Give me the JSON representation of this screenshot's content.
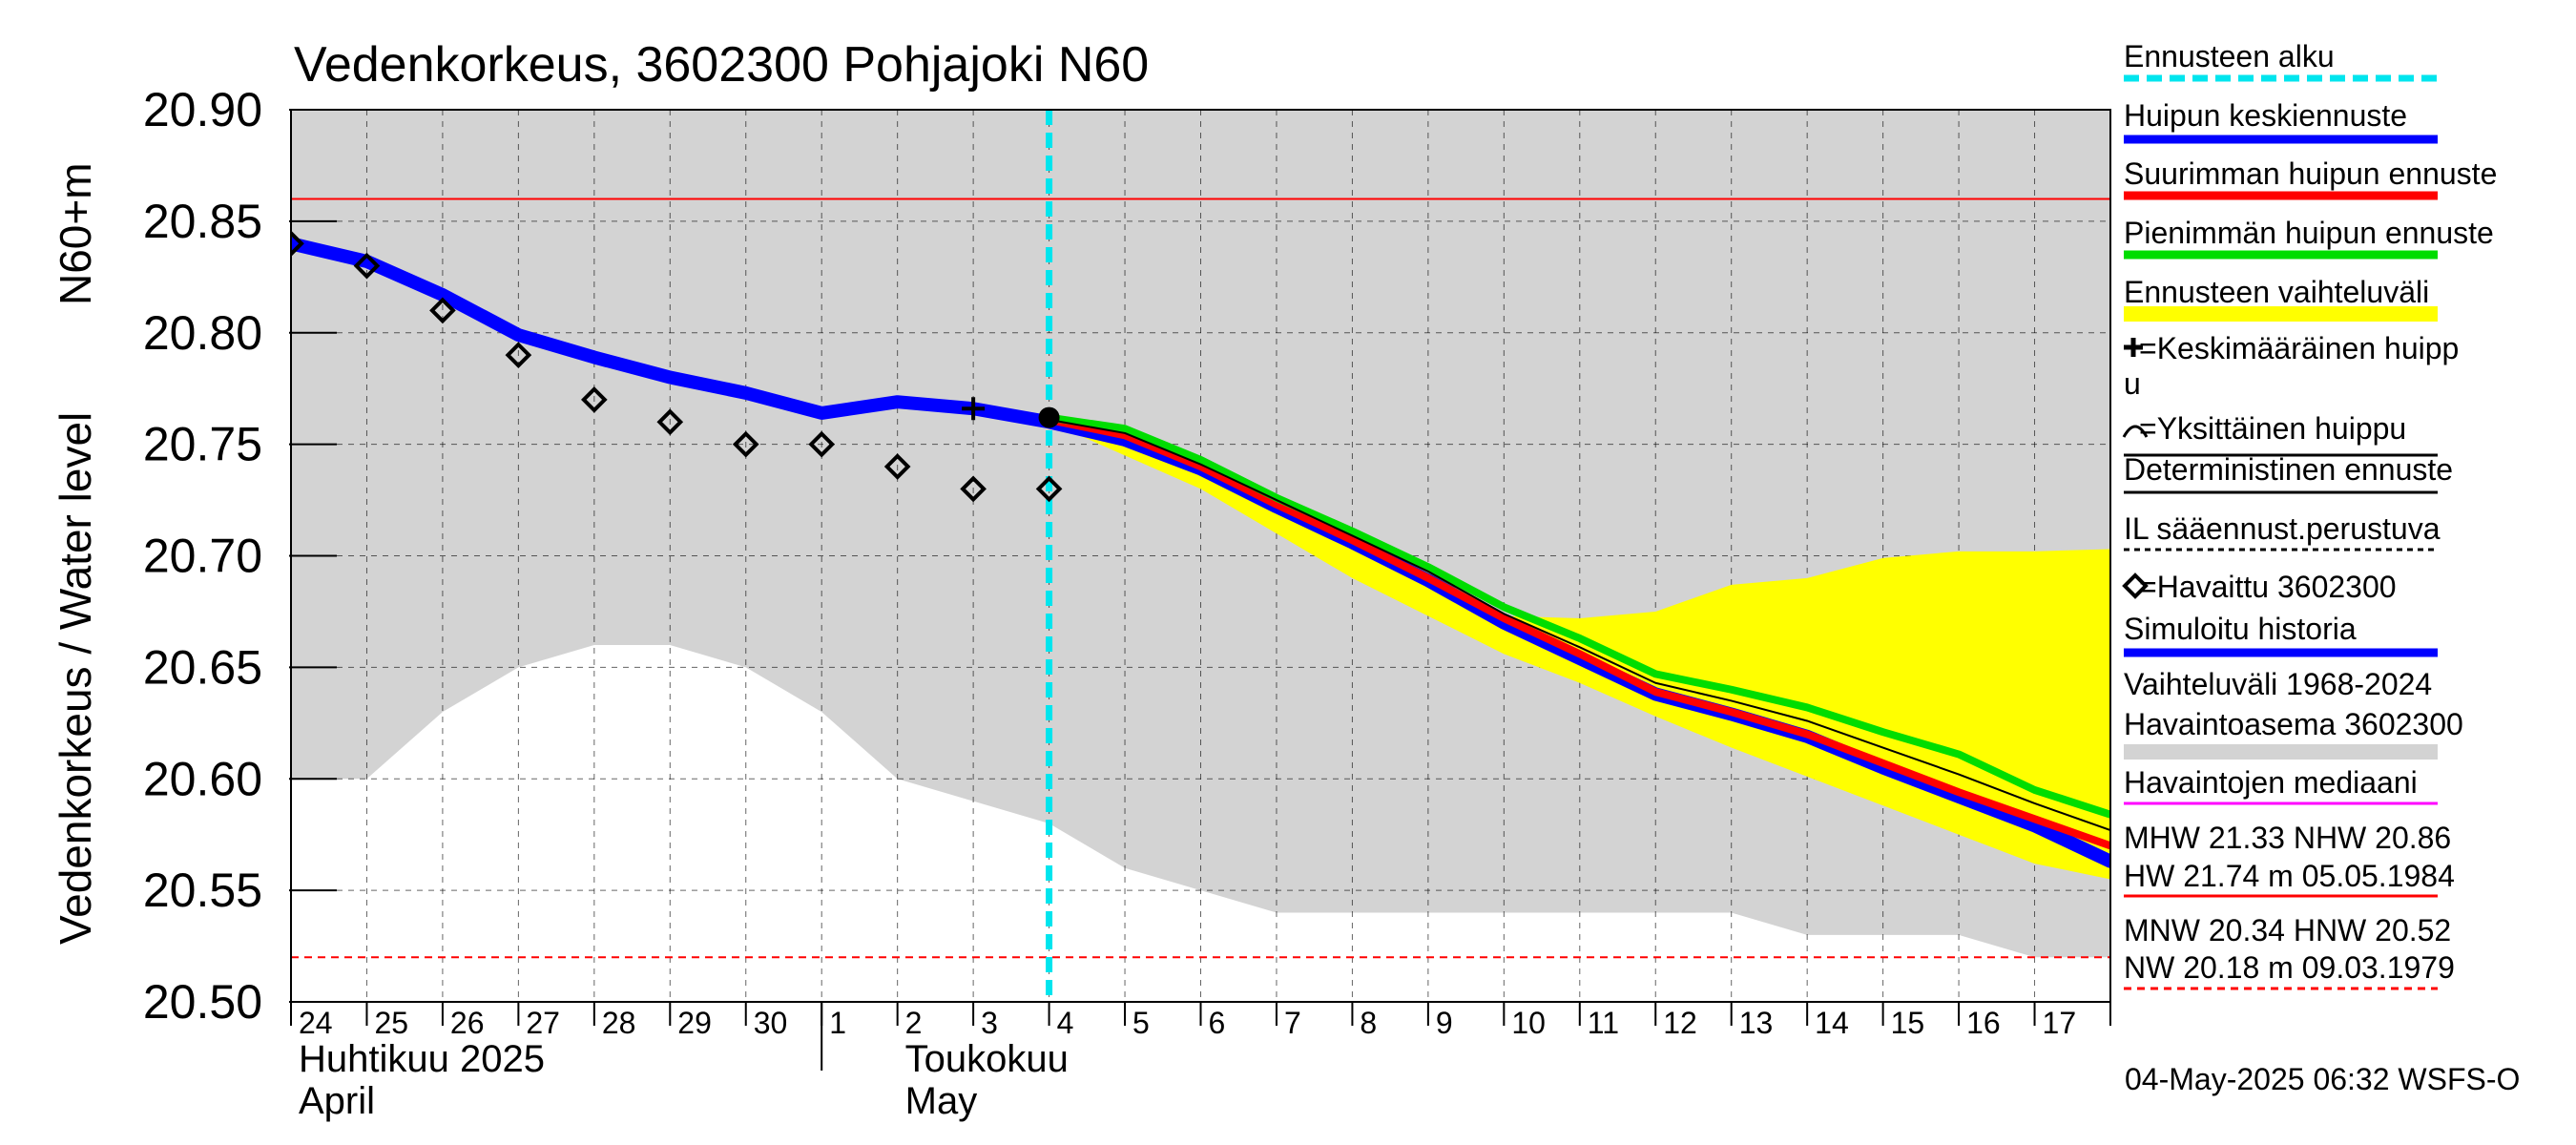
{
  "chart_data": {
    "type": "line",
    "title": "Vedenkorkeus, 3602300 Pohjajoki N60",
    "ylabel": "Vedenkorkeus / Water level",
    "ylabel_unit": "N60+m",
    "ylim": [
      20.5,
      20.9
    ],
    "yticks": [
      "20.90",
      "20.85",
      "20.80",
      "20.75",
      "20.70",
      "20.65",
      "20.60",
      "20.55",
      "20.50"
    ],
    "ytick_values": [
      20.9,
      20.85,
      20.8,
      20.75,
      20.7,
      20.65,
      20.6,
      20.55,
      20.5
    ],
    "xlim": [
      0,
      24
    ],
    "days": [
      "24",
      "25",
      "26",
      "27",
      "28",
      "29",
      "30",
      "1",
      "2",
      "3",
      "4",
      "5",
      "6",
      "7",
      "8",
      "9",
      "10",
      "11",
      "12",
      "13",
      "14",
      "15",
      "16",
      "17"
    ],
    "months": [
      {
        "line1": "Huhtikuu  2025",
        "line2": "April",
        "at": 0
      },
      {
        "line1": "Toukokuu",
        "line2": "May",
        "at": 8
      }
    ],
    "month_divider_at": 7,
    "forecast_start": 10,
    "reference_lines": {
      "nhw": 20.86,
      "hnw": 20.52
    },
    "historical_range": {
      "x": [
        0,
        1,
        2,
        3,
        4,
        5,
        6,
        7,
        8,
        9,
        10,
        11,
        12,
        13,
        14,
        15,
        16,
        17,
        18,
        19,
        20,
        21,
        22,
        23,
        24
      ],
      "upper": [
        20.9,
        20.9,
        20.9,
        20.9,
        20.9,
        20.9,
        20.9,
        20.9,
        20.9,
        20.9,
        20.9,
        20.9,
        20.9,
        20.9,
        20.9,
        20.9,
        20.9,
        20.9,
        20.9,
        20.9,
        20.9,
        20.9,
        20.9,
        20.9,
        20.9
      ],
      "lower": [
        20.6,
        20.6,
        20.63,
        20.65,
        20.66,
        20.66,
        20.65,
        20.63,
        20.6,
        20.59,
        20.58,
        20.56,
        20.55,
        20.54,
        20.54,
        20.54,
        20.54,
        20.54,
        20.54,
        20.54,
        20.53,
        20.53,
        20.53,
        20.52,
        20.52
      ]
    },
    "forecast_range": {
      "x": [
        10,
        11,
        12,
        13,
        14,
        15,
        16,
        17,
        18,
        19,
        20,
        21,
        22,
        23,
        24
      ],
      "upper": [
        20.763,
        20.757,
        20.743,
        20.726,
        20.71,
        20.694,
        20.673,
        20.672,
        20.675,
        20.687,
        20.69,
        20.699,
        20.702,
        20.702,
        20.703
      ],
      "lower": [
        20.76,
        20.745,
        20.73,
        20.71,
        20.69,
        20.673,
        20.656,
        20.643,
        20.628,
        20.614,
        20.601,
        20.588,
        20.575,
        20.562,
        20.555
      ]
    },
    "series": [
      {
        "name": "Simuloitu historia",
        "color": "#0000ff",
        "x": [
          0,
          1,
          2,
          3,
          4,
          5,
          6,
          7,
          8,
          9,
          10,
          11,
          12,
          13,
          14,
          15,
          16,
          17,
          18,
          19,
          20,
          21,
          22,
          23,
          24
        ],
        "y": [
          20.84,
          20.832,
          20.817,
          20.799,
          20.789,
          20.78,
          20.773,
          20.764,
          20.769,
          20.766,
          20.76,
          20.752,
          20.739,
          20.722,
          20.706,
          20.689,
          20.67,
          20.654,
          20.638,
          20.629,
          20.619,
          20.605,
          20.592,
          20.579,
          20.563
        ]
      },
      {
        "name": "Suurimman huipun ennuste",
        "color": "#ff0000",
        "x": [
          10,
          11,
          12,
          13,
          14,
          15,
          16,
          17,
          18,
          19,
          20,
          21,
          22,
          23,
          24
        ],
        "y": [
          20.761,
          20.754,
          20.74,
          20.723,
          20.707,
          20.69,
          20.672,
          20.656,
          20.639,
          20.63,
          20.62,
          20.607,
          20.594,
          20.582,
          20.57
        ]
      },
      {
        "name": "Pienimmän huipun ennuste",
        "color": "#00dd00",
        "x": [
          10,
          11,
          12,
          13,
          14,
          15,
          16,
          17,
          18,
          19,
          20,
          21,
          22,
          23,
          24
        ],
        "y": [
          20.762,
          20.757,
          20.743,
          20.726,
          20.711,
          20.695,
          20.677,
          20.663,
          20.647,
          20.64,
          20.632,
          20.621,
          20.611,
          20.595,
          20.584
        ]
      },
      {
        "name": "Deterministinen ennuste",
        "color": "#000000",
        "x": [
          10,
          11,
          12,
          13,
          14,
          15,
          16,
          17,
          18,
          19,
          20,
          21,
          22,
          23,
          24
        ],
        "y": [
          20.761,
          20.755,
          20.741,
          20.725,
          20.709,
          20.693,
          20.674,
          20.659,
          20.643,
          20.635,
          20.626,
          20.614,
          20.602,
          20.589,
          20.577
        ]
      }
    ],
    "observed": {
      "name": "Havaittu 3602300",
      "x": [
        0,
        1,
        2,
        3,
        4,
        5,
        6,
        7,
        8,
        9,
        10
      ],
      "y": [
        20.84,
        20.83,
        20.81,
        20.79,
        20.77,
        20.76,
        20.75,
        20.75,
        20.74,
        20.73,
        20.73
      ]
    },
    "mean_peak": {
      "x": 9,
      "y": 20.766
    },
    "single_peak": {
      "x": 10,
      "y": 20.762
    }
  },
  "legend": [
    {
      "label": "Ennusteen alku",
      "color": "#00e5ee",
      "style": "dashed"
    },
    {
      "label": "Huipun keskiennuste",
      "color": "#0000ff",
      "style": "thick"
    },
    {
      "label": "Suurimman huipun ennuste",
      "color": "#ff0000",
      "style": "thick"
    },
    {
      "label": "Pienimmän huipun ennuste",
      "color": "#00dd00",
      "style": "thick"
    },
    {
      "label": "Ennusteen vaihteluväli",
      "color": "#ffff00",
      "style": "band"
    },
    {
      "label": "=Keskimääräinen huipp",
      "label2": "u",
      "marker": "✚"
    },
    {
      "label": "=Yksittäinen huippu",
      "marker": "⌒",
      "color": "#000000",
      "style": "thin"
    },
    {
      "label": "Deterministinen ennuste",
      "color": "#000000",
      "style": "thin"
    },
    {
      "label": "IL sääennust.perustuva",
      "color": "#000000",
      "style": "dotted"
    },
    {
      "label": "=Havaittu 3602300",
      "marker": "◇"
    },
    {
      "label": "Simuloitu historia",
      "color": "#0000ff",
      "style": "thick"
    },
    {
      "label": "Vaihteluväli 1968-2024",
      "label2": " Havaintoasema 3602300",
      "color": "#d3d3d3",
      "style": "band"
    },
    {
      "label": "Havaintojen mediaani",
      "color": "#ff00ff",
      "style": "thin"
    },
    {
      "label": "MHW  21.33 NHW  20.86",
      "label2": "HW  21.74 m 05.05.1984",
      "color": "#ff0000",
      "style": "thin"
    },
    {
      "label": "MNW  20.34 HNW  20.52",
      "label2": "NW  20.18 m 09.03.1979",
      "color": "#ff0000",
      "style": "dashed-thin"
    }
  ],
  "timestamp": "04-May-2025 06:32 WSFS-O"
}
